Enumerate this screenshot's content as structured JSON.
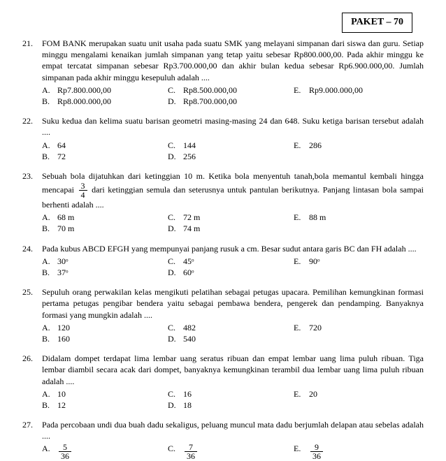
{
  "header": "PAKET – 70",
  "questions": [
    {
      "num": "21.",
      "text": "FOM BANK merupakan suatu unit usaha pada suatu SMK yang melayani simpanan dari siswa dan guru. Setiap minggu mengalami kenaikan jumlah simpanan yang tetap yaitu sebesar Rp800.000,00. Pada akhir minggu ke empat tercatat simpanan sebesar Rp3.700.000,00 dan akhir bulan kedua sebesar Rp6.900.000,00. Jumlah simpanan pada akhir minggu kesepuluh adalah ....",
      "a": "Rp7.800.000,00",
      "b": "Rp8.000.000,00",
      "c": "Rp8.500.000,00",
      "d": "Rp8.700.000,00",
      "e": "Rp9.000.000,00"
    },
    {
      "num": "22.",
      "text": "Suku kedua dan kelima suatu barisan geometri masing-masing 24 dan 648. Suku ketiga barisan tersebut adalah ....",
      "a": "64",
      "b": "72",
      "c": "144",
      "d": "256",
      "e": "286"
    },
    {
      "num": "23.",
      "text_parts": [
        "Sebuah bola dijatuhkan dari ketinggian 10 m. Ketika bola menyentuh tanah,bola memantul kembali hingga mencapai ",
        " dari ketinggian semula dan seterusnya untuk pantulan berikutnya. Panjang lintasan bola sampai berhenti adalah ...."
      ],
      "frac": {
        "num": "3",
        "den": "4"
      },
      "a": "68 m",
      "b": "70 m",
      "c": "72 m",
      "d": "74 m",
      "e": "88 m"
    },
    {
      "num": "24.",
      "text": "Pada kubus ABCD EFGH yang mempunyai panjang rusuk a cm. Besar sudut antara garis BC dan FH adalah ....",
      "a": "30ᵒ",
      "b": "37ᵒ",
      "c": "45ᵒ",
      "d": "60ᵒ",
      "e": "90ᵒ"
    },
    {
      "num": "25.",
      "text": "Sepuluh orang perwakilan kelas mengikuti pelatihan sebagai petugas upacara. Pemilihan kemungkinan formasi pertama  petugas pengibar bendera yaitu sebagai pembawa bendera, pengerek dan pendamping. Banyaknya formasi yang mungkin  adalah ....",
      "a": "120",
      "b": "160",
      "c": "482",
      "d": "540",
      "e": "720"
    },
    {
      "num": "26.",
      "text": "Didalam dompet terdapat lima lembar uang seratus ribuan dan empat lembar uang lima puluh ribuan. Tiga lembar diambil secara acak dari dompet, banyaknya kemungkinan  terambil dua lembar uang lima puluh ribuan adalah ....",
      "a": "10",
      "b": "12",
      "c": "16",
      "d": "18",
      "e": "20"
    },
    {
      "num": "27.",
      "text": "Pada percobaan undi dua buah dadu sekaligus, peluang muncul  mata dadu berjumlah delapan atau sebelas adalah ....",
      "frac_opts": {
        "a": {
          "num": "5",
          "den": "36"
        },
        "c": {
          "num": "7",
          "den": "36"
        },
        "e": {
          "num": "9",
          "den": "36"
        }
      }
    }
  ],
  "letters": {
    "a": "A.",
    "b": "B.",
    "c": "C.",
    "d": "D.",
    "e": "E."
  }
}
